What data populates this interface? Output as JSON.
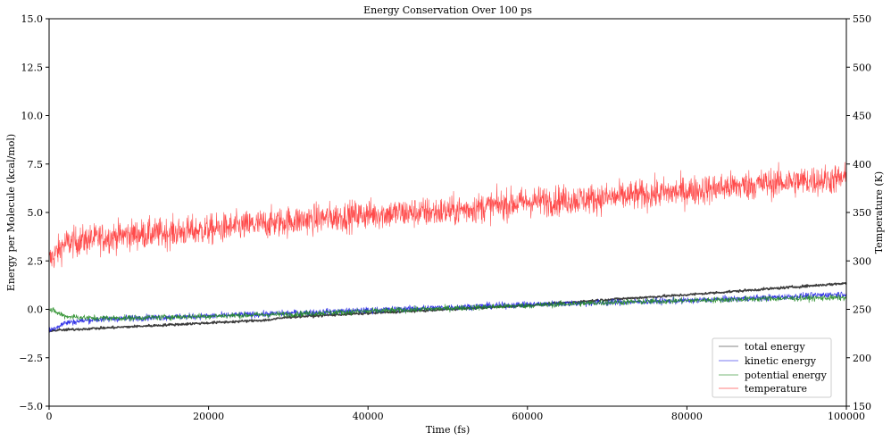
{
  "chart_data": {
    "type": "line",
    "title": "Energy Conservation Over 100 ps",
    "xlabel": "Time (fs)",
    "ylabel": "Energy per Molecule (kcal/mol)",
    "y2label": "Temperature (K)",
    "xlim": [
      0,
      100000
    ],
    "ylim": [
      -5,
      15
    ],
    "y2lim": [
      150,
      550
    ],
    "xticks": [
      0,
      20000,
      40000,
      60000,
      80000,
      100000
    ],
    "yticks": [
      -5.0,
      -2.5,
      0.0,
      2.5,
      5.0,
      7.5,
      10.0,
      12.5,
      15.0
    ],
    "y2ticks": [
      150,
      200,
      250,
      300,
      350,
      400,
      450,
      500,
      550
    ],
    "xtick_labels": [
      "0",
      "20000",
      "40000",
      "60000",
      "80000",
      "100000"
    ],
    "ytick_labels": [
      "−5.0",
      "−2.5",
      "0.0",
      "2.5",
      "5.0",
      "7.5",
      "10.0",
      "12.5",
      "15.0"
    ],
    "y2tick_labels": [
      "150",
      "200",
      "250",
      "300",
      "350",
      "400",
      "450",
      "500",
      "550"
    ],
    "legend_position": "lower-right",
    "grid": false,
    "series": [
      {
        "name": "total energy",
        "axis": "left",
        "color": "#333333",
        "x": [
          0,
          5000,
          10000,
          15000,
          20000,
          25000,
          27500,
          30000,
          40000,
          50000,
          60000,
          70000,
          80000,
          90000,
          100000
        ],
        "y": [
          -1.1,
          -1.0,
          -0.9,
          -0.8,
          -0.7,
          -0.6,
          -0.55,
          -0.4,
          -0.2,
          0.0,
          0.2,
          0.5,
          0.75,
          1.05,
          1.35
        ]
      },
      {
        "name": "kinetic energy",
        "axis": "left",
        "color": "#1f1fe6",
        "x": [
          0,
          2000,
          5000,
          10000,
          20000,
          30000,
          40000,
          50000,
          60000,
          70000,
          80000,
          90000,
          100000
        ],
        "y": [
          -1.1,
          -0.7,
          -0.55,
          -0.45,
          -0.35,
          -0.2,
          -0.05,
          0.1,
          0.25,
          0.35,
          0.45,
          0.6,
          0.8
        ]
      },
      {
        "name": "potential energy",
        "axis": "left",
        "color": "#228b22",
        "x": [
          0,
          2000,
          5000,
          10000,
          20000,
          30000,
          40000,
          50000,
          60000,
          70000,
          80000,
          90000,
          100000
        ],
        "y": [
          0.0,
          -0.35,
          -0.45,
          -0.45,
          -0.35,
          -0.25,
          -0.1,
          0.05,
          0.2,
          0.35,
          0.45,
          0.55,
          0.6
        ]
      },
      {
        "name": "temperature",
        "axis": "right",
        "color": "#ff2a2a",
        "x": [
          0,
          2000,
          5000,
          10000,
          15000,
          20000,
          30000,
          40000,
          50000,
          60000,
          70000,
          80000,
          90000,
          100000
        ],
        "y": [
          300,
          318,
          322,
          327,
          329,
          332,
          341,
          348,
          351,
          361,
          365,
          372,
          380,
          385
        ]
      }
    ]
  }
}
